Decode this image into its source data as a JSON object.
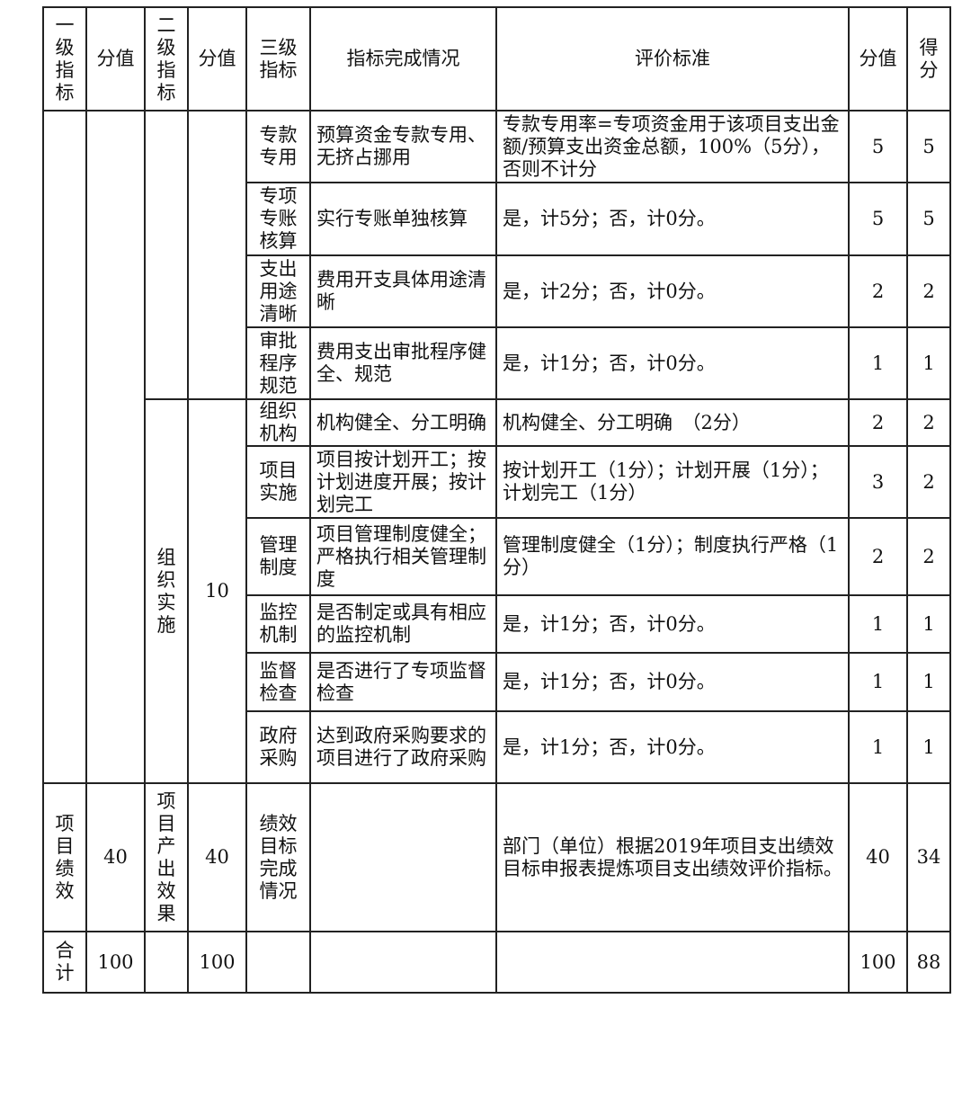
{
  "headers": [
    "一级指标",
    "分值",
    "二级指标",
    "分值",
    "三级指标",
    "指标完成情况",
    "评价标准",
    "分值",
    "得分"
  ],
  "group2": {
    "name": "组织实施",
    "score": "10"
  },
  "rows": [
    {
      "l3": "专款专用",
      "done": "预算资金专款专用、无挤占挪用",
      "std": "专款专用率=专项资金用于该项目支出金额/预算支出资金总额，100%（5分），否则不计分",
      "score": "5",
      "got": "5"
    },
    {
      "l3": "专项专账核算",
      "done": "实行专账单独核算",
      "std": "是，计5分；否，计0分。",
      "score": "5",
      "got": "5"
    },
    {
      "l3": "支出用途清晰",
      "done": "费用开支具体用途清晰",
      "std": "是，计2分；否，计0分。",
      "score": "2",
      "got": "2"
    },
    {
      "l3": "审批程序规范",
      "done": "费用支出审批程序健全、规范",
      "std": "是，计1分；否，计0分。",
      "score": "1",
      "got": "1"
    },
    {
      "l3": "组织机构",
      "done": "机构健全、分工明确",
      "std": "机构健全、分工明确　（2分）",
      "score": "2",
      "got": "2"
    },
    {
      "l3": "项目实施",
      "done": "项目按计划开工；按计划进度开展；按计划完工",
      "std": "按计划开工（1分）；计划开展（1分）；计划完工（1分）",
      "score": "3",
      "got": "2"
    },
    {
      "l3": "管理制度",
      "done": "项目管理制度健全；严格执行相关管理制度",
      "std": "管理制度健全（1分）；制度执行严格（1分）",
      "score": "2",
      "got": "2"
    },
    {
      "l3": "监控机制",
      "done": "是否制定或具有相应的监控机制",
      "std": "是，计1分；否，计0分。",
      "score": "1",
      "got": "1"
    },
    {
      "l3": "监督检查",
      "done": "是否进行了专项监督检查",
      "std": "是，计1分；否，计0分。",
      "score": "1",
      "got": "1"
    },
    {
      "l3": "政府采购",
      "done": "达到政府采购要求的项目进行了政府采购",
      "std": "是，计1分；否，计0分。",
      "score": "1",
      "got": "1"
    }
  ],
  "perf": {
    "l1": "项目绩效",
    "s1": "40",
    "l2": "项目产出效果",
    "s2": "40",
    "l3": "绩效目标完成情况",
    "std": "部门（单位）根据2019年项目支出绩效目标申报表提炼项目支出绩效评价指标。",
    "score": "40",
    "got": "34"
  },
  "total": {
    "label": "合计",
    "s1": "100",
    "s2": "100",
    "score": "100",
    "got": "88"
  }
}
